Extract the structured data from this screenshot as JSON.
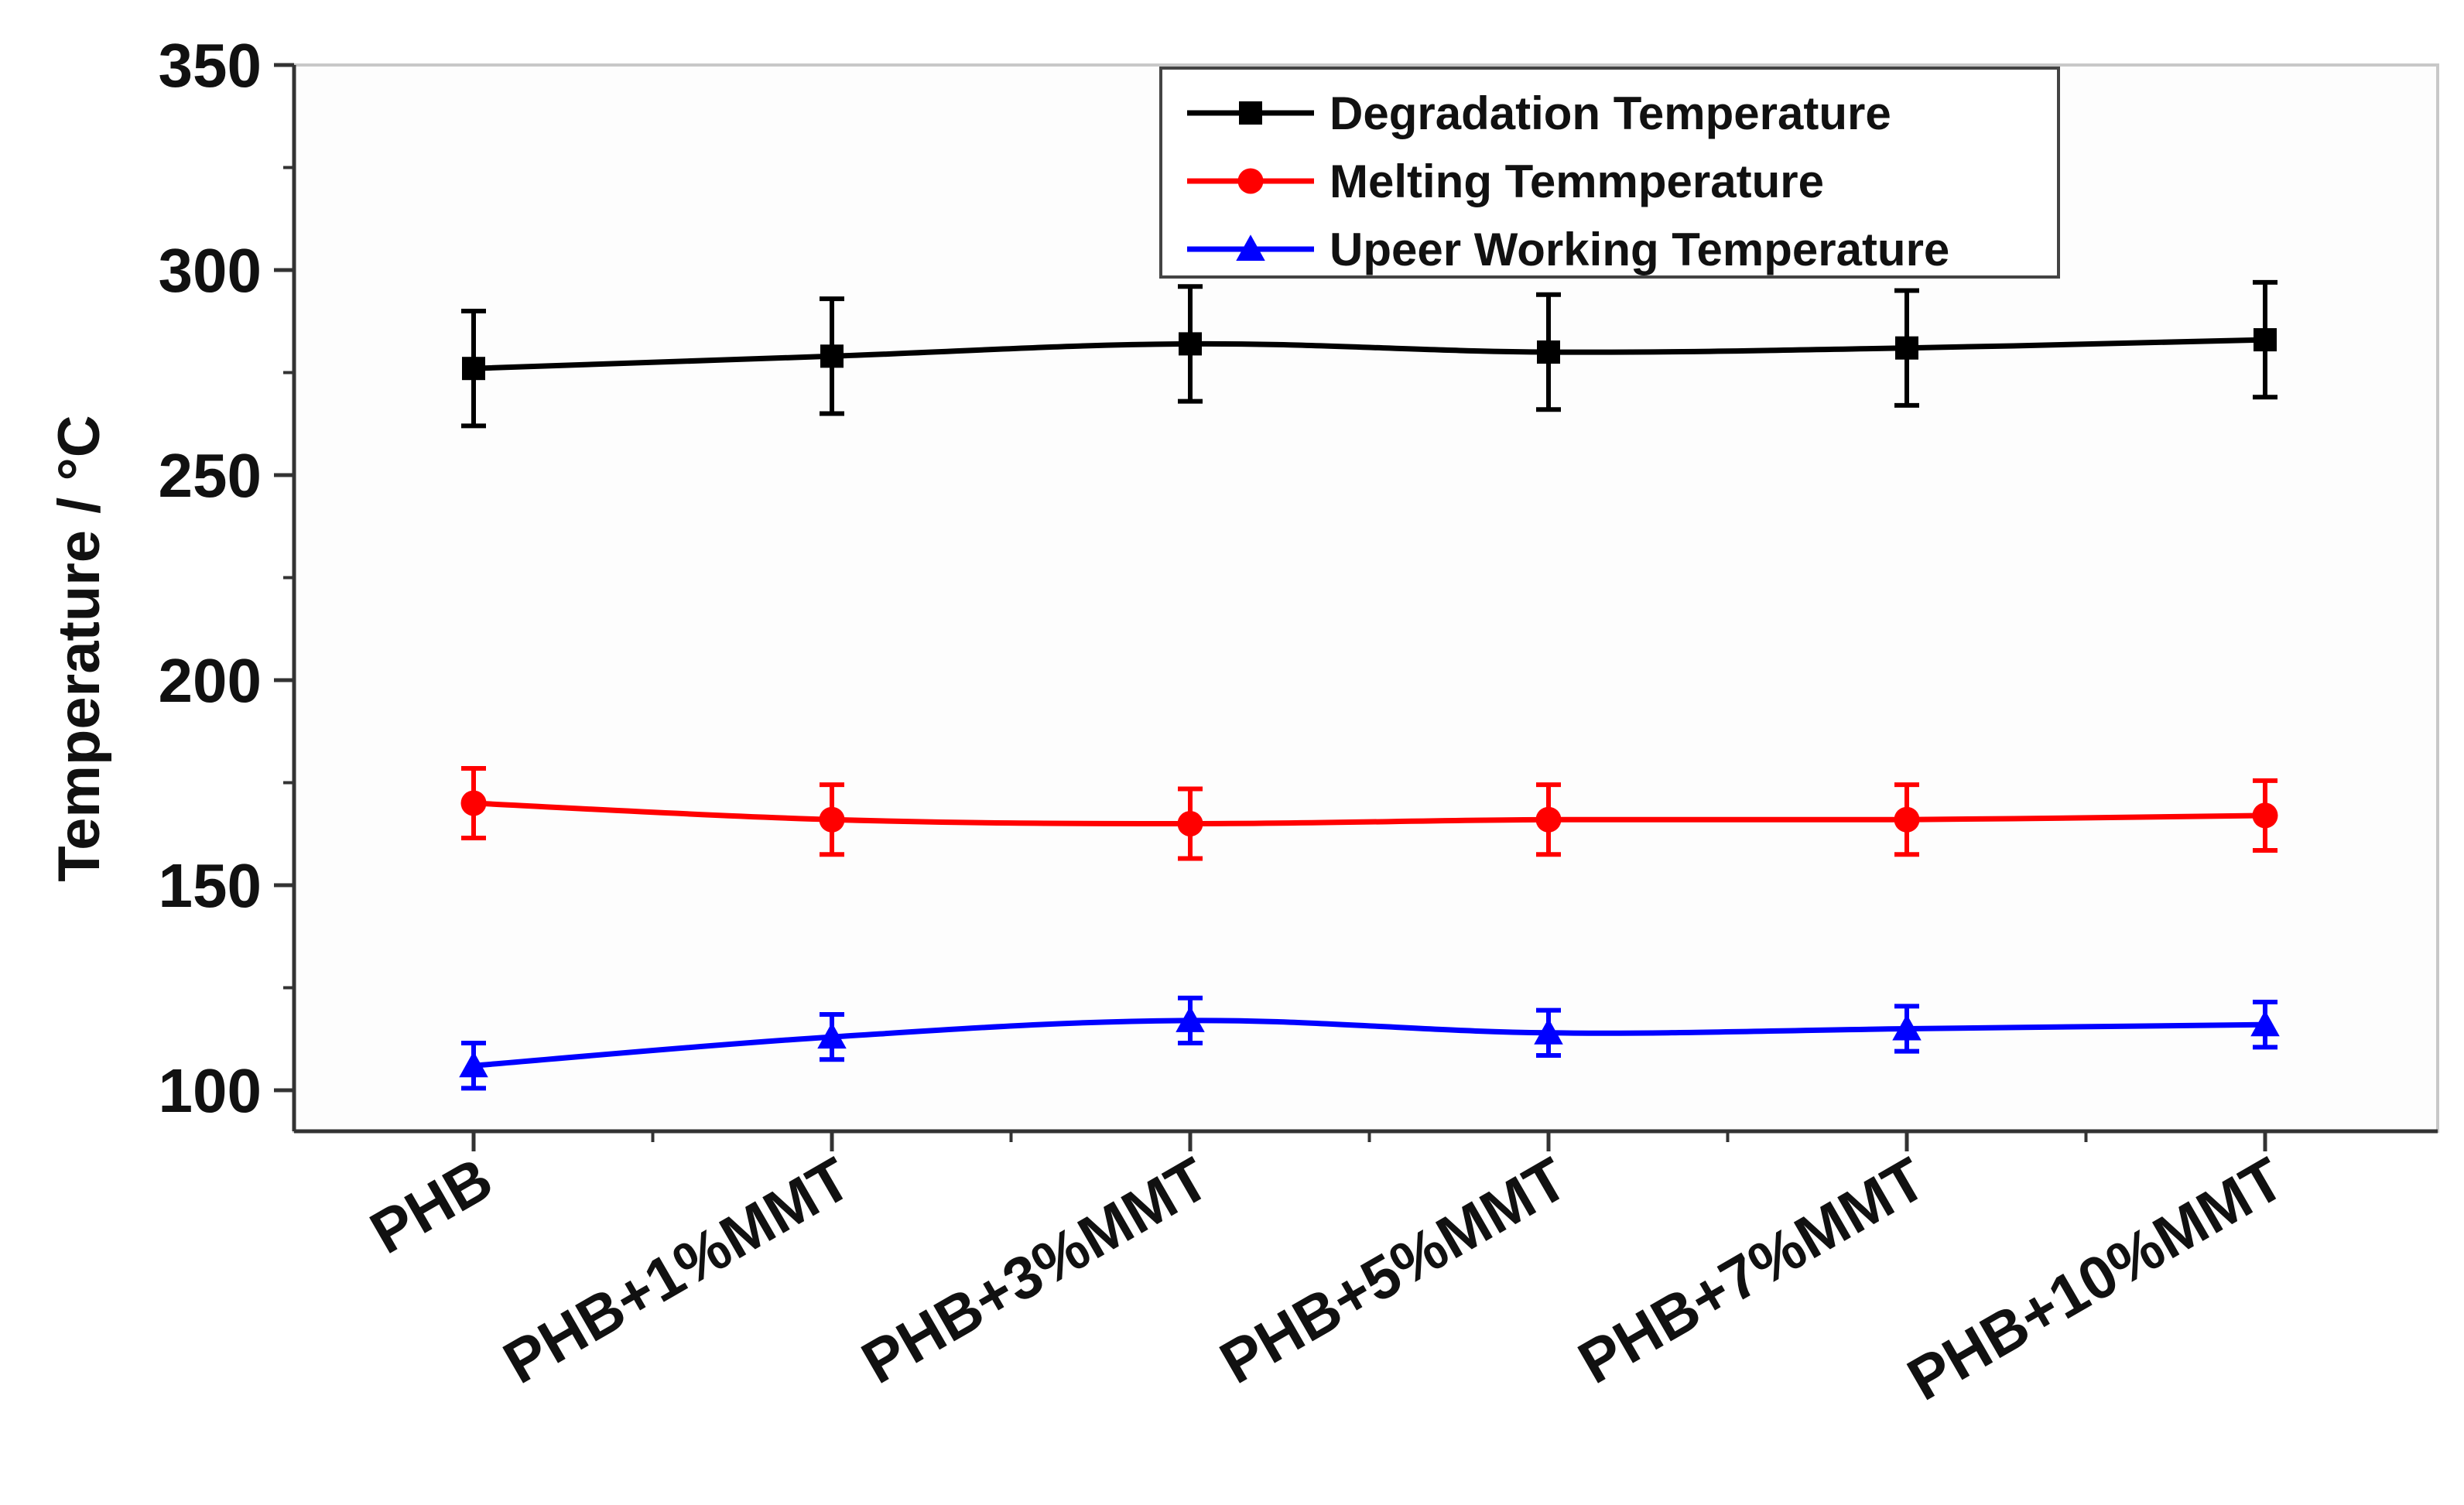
{
  "chart_data": {
    "type": "line",
    "title": "",
    "xlabel": "",
    "ylabel": "Temperature / °C",
    "categories": [
      "PHB",
      "PHB+1%MMT",
      "PHB+3%MMT",
      "PHB+5%MMT",
      "PHB+7%MMT",
      "PHB+10%MMT"
    ],
    "ylim": [
      90,
      350
    ],
    "yticks": [
      100,
      150,
      200,
      250,
      300,
      350
    ],
    "grid": false,
    "legend_position": "top-right",
    "series": [
      {
        "name": "Degradation Temperature",
        "color": "#000000",
        "marker": "square",
        "values": [
          276,
          279,
          282,
          280,
          281,
          283
        ],
        "errors": [
          14,
          14,
          14,
          14,
          14,
          14
        ]
      },
      {
        "name": "Melting Temmperature",
        "color": "#ff0000",
        "marker": "circle",
        "values": [
          170,
          166,
          165,
          166,
          166,
          167
        ],
        "errors": [
          8.5,
          8.5,
          8.5,
          8.5,
          8.5,
          8.5
        ]
      },
      {
        "name": "Upeer Working Temperature",
        "color": "#0000ff",
        "marker": "triangle",
        "values": [
          106,
          113,
          117,
          114,
          115,
          116
        ],
        "errors": [
          5.5,
          5.5,
          5.5,
          5.5,
          5.5,
          5.5
        ]
      }
    ]
  }
}
